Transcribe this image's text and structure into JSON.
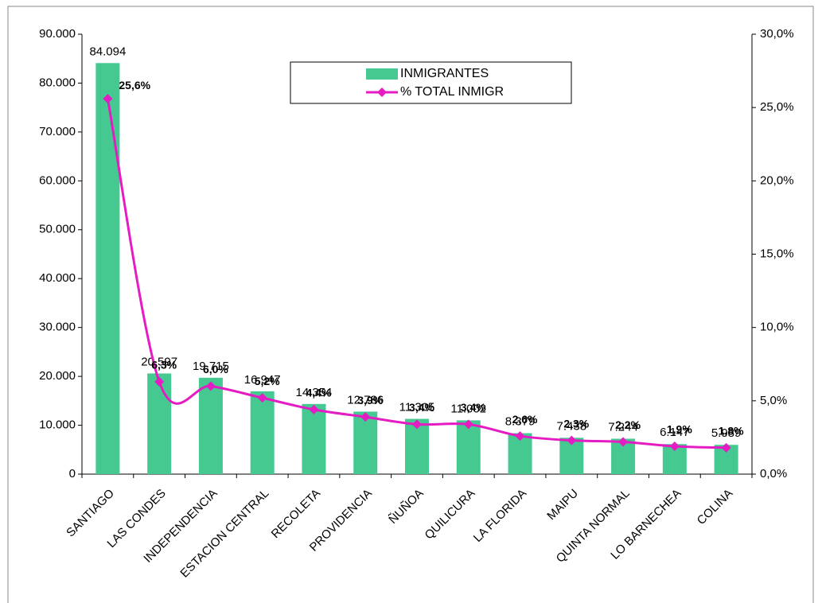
{
  "chart_data": {
    "type": "bar-line",
    "categories": [
      "SANTIAGO",
      "LAS CONDES",
      "INDEPENDENCIA",
      "ESTACION CENTRAL",
      "RECOLETA",
      "PROVIDENCIA",
      "ÑUÑOA",
      "QUILICURA",
      "LA FLORIDA",
      "MAIPU",
      "QUINTA NORMAL",
      "LO BARNECHEA",
      "COLINA"
    ],
    "series": [
      {
        "name": "INMIGRANTES",
        "type": "bar",
        "color": "#45c991",
        "values": [
          84094,
          20597,
          19715,
          16947,
          14354,
          12786,
          11305,
          11002,
          8379,
          7438,
          7244,
          6147,
          5989
        ],
        "value_labels": [
          "84.094",
          "20.597",
          "19.715",
          "16.947",
          "14.354",
          "12.786",
          "11.305",
          "11.002",
          "8.379",
          "7.438",
          "7.244",
          "6.147",
          "5.989"
        ]
      },
      {
        "name": "% TOTAL INMIGR",
        "type": "line",
        "axis": "y2",
        "color": "#e51bc3",
        "values": [
          25.6,
          6.3,
          6.0,
          5.2,
          4.4,
          3.9,
          3.4,
          3.4,
          2.6,
          2.3,
          2.2,
          1.9,
          1.8
        ],
        "value_labels": [
          "25,6%",
          "6,3%",
          "6,0%",
          "5,2%",
          "4,4%",
          "3,9%",
          "3,4%",
          "3,4%",
          "2,6%",
          "2,3%",
          "2,2%",
          "1,9%",
          "1,8%"
        ]
      }
    ],
    "ylim": [
      0,
      90000
    ],
    "yticks": [
      0,
      {
        "value": 10000,
        "label": "10.000"
      },
      {
        "value": 20000,
        "label": "20.000"
      },
      {
        "value": 30000,
        "label": "30.000"
      },
      {
        "value": 40000,
        "label": "40.000"
      },
      {
        "value": 50000,
        "label": "50.000"
      },
      {
        "value": 60000,
        "label": "60.000"
      },
      {
        "value": 70000,
        "label": "70.000"
      },
      {
        "value": 80000,
        "label": "80.000"
      },
      {
        "value": 90000,
        "label": "90.000"
      }
    ],
    "y2lim": [
      0,
      30
    ],
    "y2ticks": [
      {
        "value": 0,
        "label": "0,0%"
      },
      {
        "value": 5,
        "label": "5,0%"
      },
      {
        "value": 10,
        "label": "10,0%"
      },
      {
        "value": 15,
        "label": "15,0%"
      },
      {
        "value": 20,
        "label": "20,0%"
      },
      {
        "value": 25,
        "label": "25,0%"
      },
      {
        "value": 30,
        "label": "30,0%"
      }
    ],
    "legend": "top"
  }
}
